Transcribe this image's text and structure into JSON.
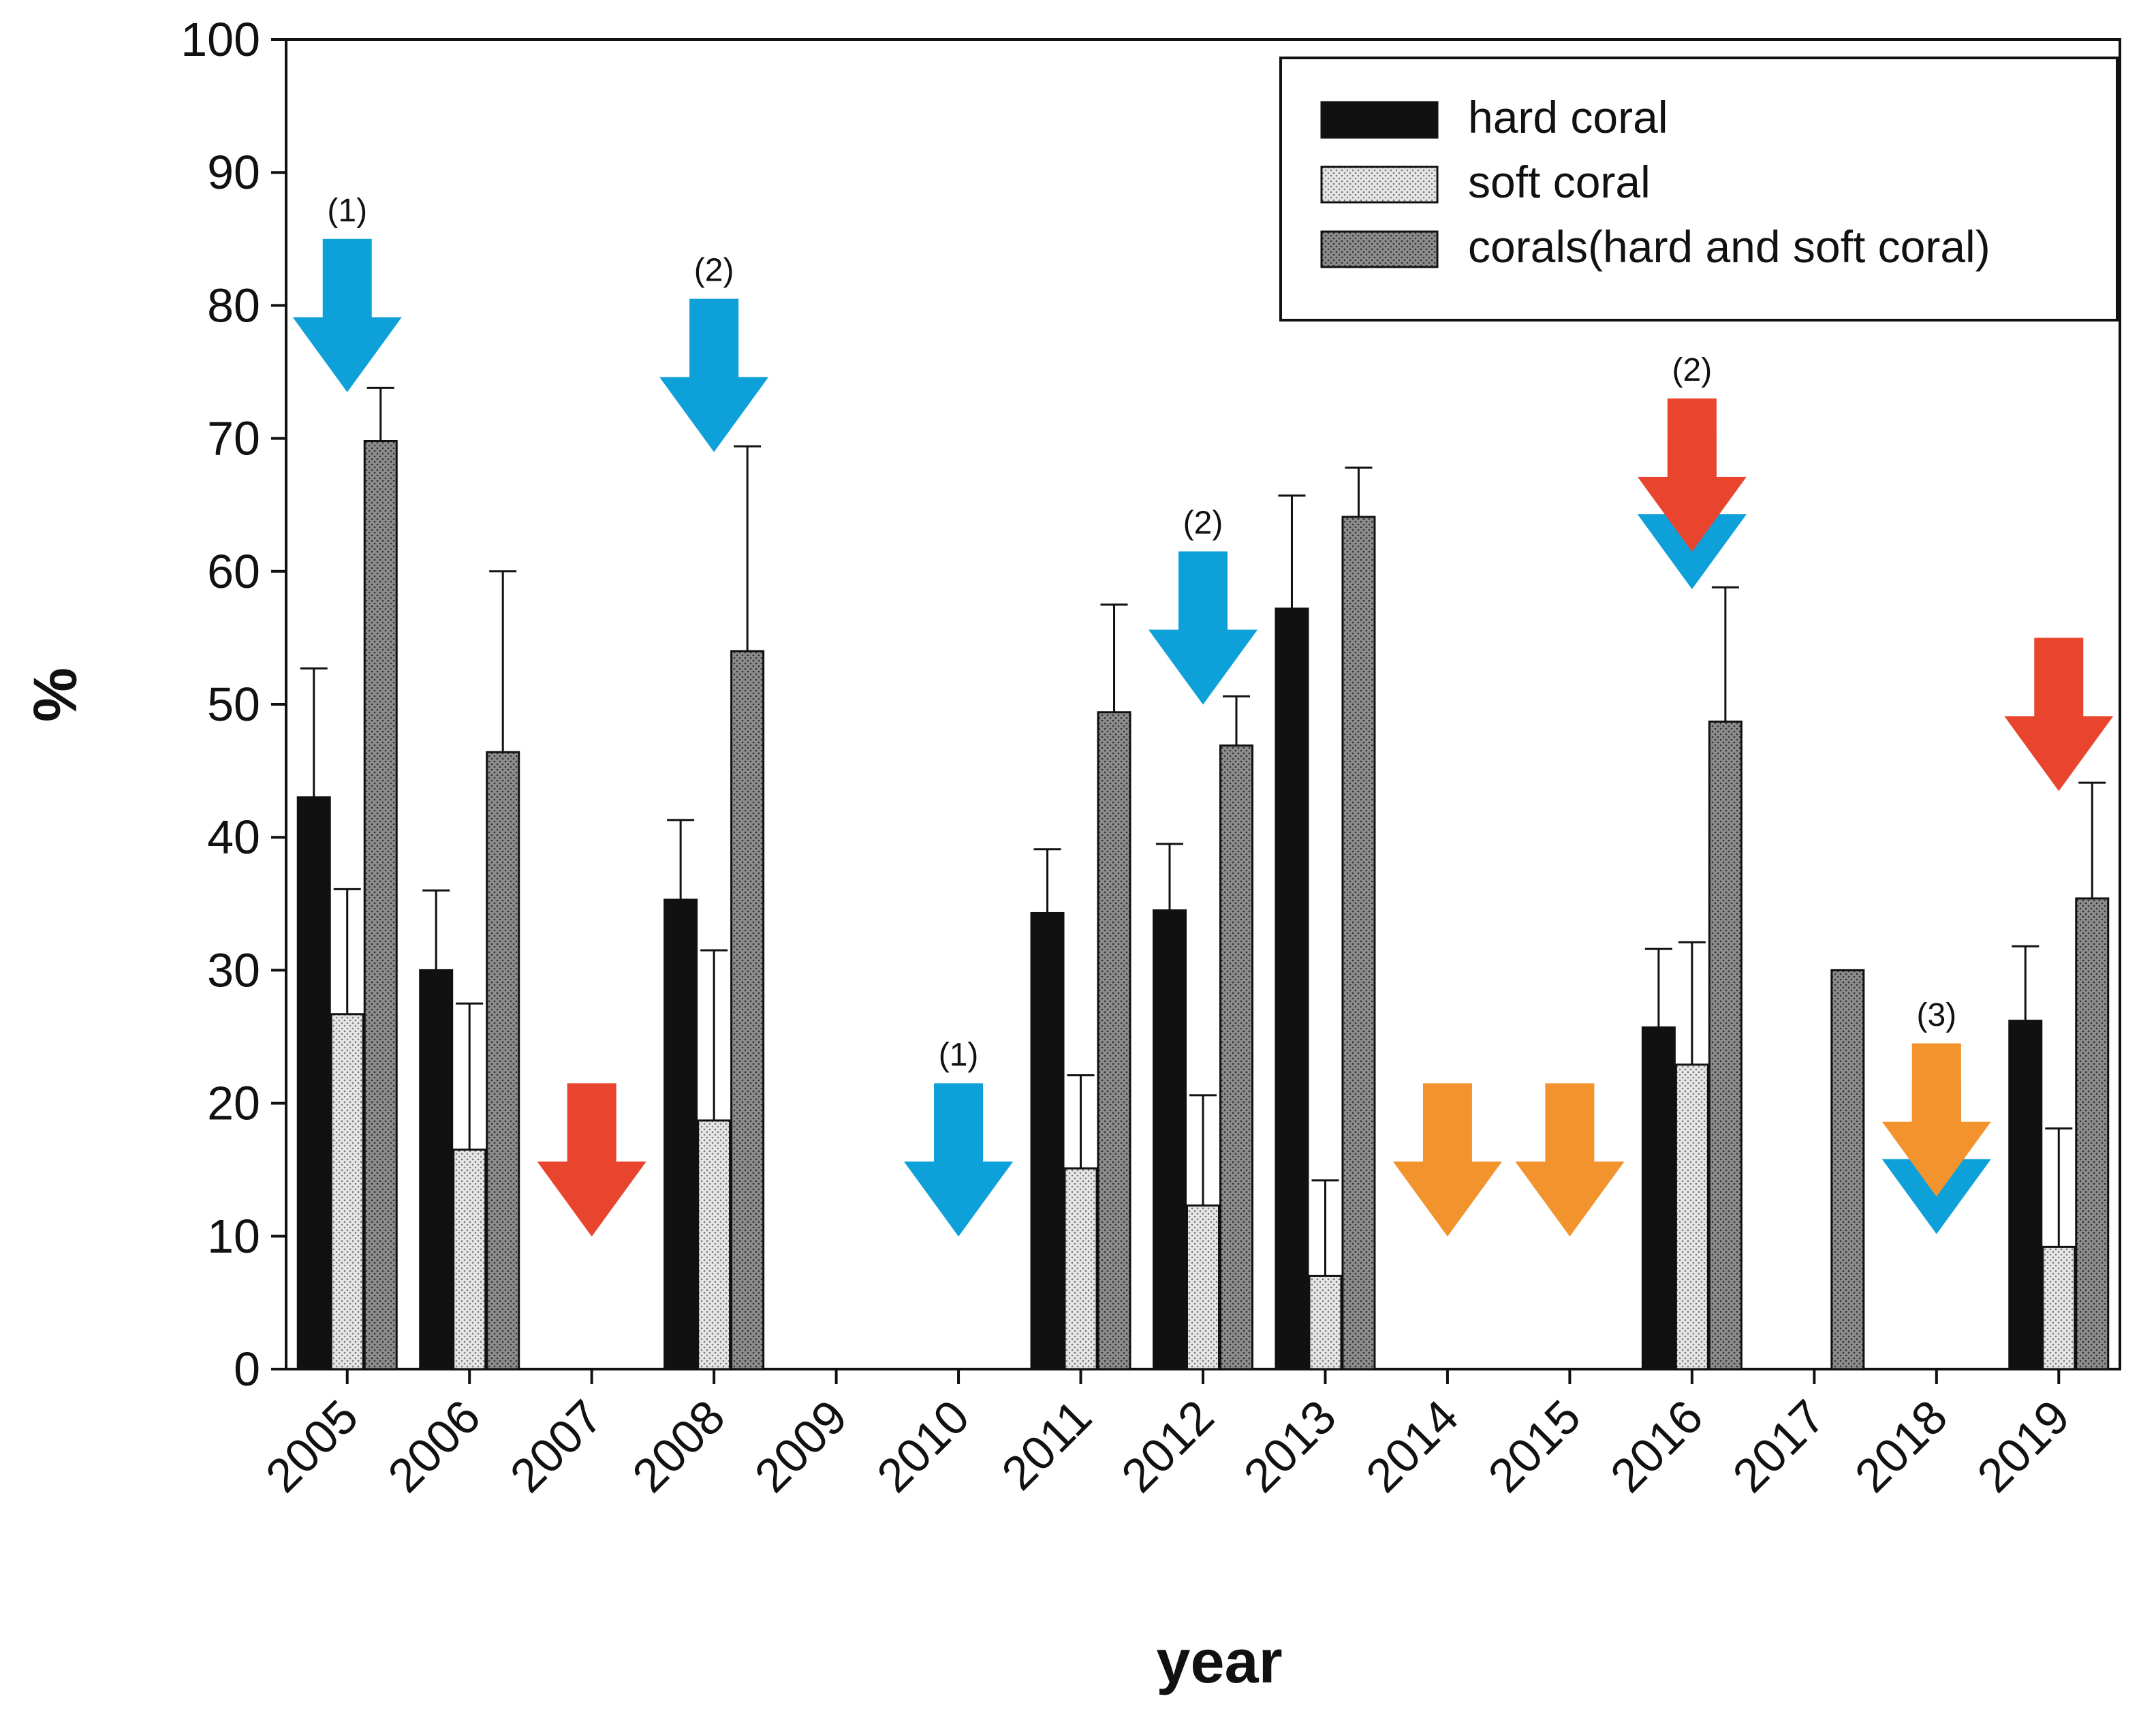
{
  "chart_data": {
    "type": "bar",
    "title": "",
    "xlabel": "year",
    "ylabel": "%",
    "ylim": [
      0,
      100
    ],
    "yticks": [
      0,
      10,
      20,
      30,
      40,
      50,
      60,
      70,
      80,
      90,
      100
    ],
    "categories": [
      "2005",
      "2006",
      "2007",
      "2008",
      "2009",
      "2010",
      "2011",
      "2012",
      "2013",
      "2014",
      "2015",
      "2016",
      "2017",
      "2018",
      "2019"
    ],
    "legend_position": "top-right",
    "series": [
      {
        "name": "hard coral",
        "color": "#111111",
        "pattern": "solid",
        "values": [
          43,
          30,
          null,
          35.3,
          null,
          null,
          34.3,
          34.5,
          57.2,
          null,
          null,
          25.7,
          null,
          null,
          26.2
        ],
        "error": [
          9.7,
          6,
          null,
          6,
          null,
          null,
          4.8,
          5,
          8.5,
          null,
          null,
          5.9,
          null,
          null,
          5.6
        ]
      },
      {
        "name": "soft coral",
        "color": "#d4d4d4",
        "pattern": "light-dots",
        "values": [
          26.7,
          16.5,
          null,
          18.7,
          null,
          null,
          15.1,
          12.3,
          7,
          null,
          null,
          22.9,
          null,
          null,
          9.2
        ],
        "error": [
          9.4,
          11,
          null,
          12.8,
          null,
          null,
          7,
          8.3,
          7.2,
          null,
          null,
          9.2,
          null,
          null,
          8.9
        ]
      },
      {
        "name": "corals(hard and soft coral)",
        "color": "#8a8a8a",
        "pattern": "dark-dots",
        "values": [
          69.8,
          46.4,
          null,
          54,
          null,
          null,
          49.4,
          46.9,
          64.1,
          null,
          null,
          48.7,
          30,
          null,
          35.4
        ],
        "error": [
          4,
          13.6,
          null,
          15.4,
          null,
          null,
          8.1,
          3.7,
          3.7,
          null,
          null,
          10.1,
          null,
          null,
          8.7
        ]
      }
    ],
    "annotations": [
      {
        "year": "2005",
        "label": "(1)",
        "arrows": [
          "blue"
        ],
        "y_top": 85
      },
      {
        "year": "2007",
        "label": "",
        "arrows": [
          "red"
        ],
        "y_top": 21.5
      },
      {
        "year": "2008",
        "label": "(2)",
        "arrows": [
          "blue"
        ],
        "y_top": 80.5
      },
      {
        "year": "2010",
        "label": "(1)",
        "arrows": [
          "blue"
        ],
        "y_top": 21.5
      },
      {
        "year": "2012",
        "label": "(2)",
        "arrows": [
          "blue"
        ],
        "y_top": 61.5
      },
      {
        "year": "2014",
        "label": "",
        "arrows": [
          "orange"
        ],
        "y_top": 21.5
      },
      {
        "year": "2015",
        "label": "",
        "arrows": [
          "orange"
        ],
        "y_top": 21.5
      },
      {
        "year": "2016",
        "label": "(2)",
        "arrows": [
          "blue",
          "red"
        ],
        "y_top": 73
      },
      {
        "year": "2018",
        "label": "(3)",
        "arrows": [
          "blue",
          "orange"
        ],
        "y_top": 24.5
      },
      {
        "year": "2019",
        "label": "",
        "arrows": [
          "red"
        ],
        "y_top": 55
      }
    ],
    "arrow_colors": {
      "blue": "#0ea0d8",
      "red": "#e8442e",
      "orange": "#f2932e"
    }
  }
}
